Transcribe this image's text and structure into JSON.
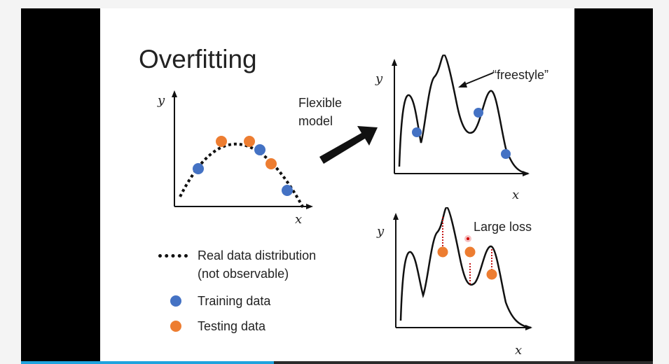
{
  "slide": {
    "title": "Overfitting",
    "flexible_model_line1": "Flexible",
    "flexible_model_line2": "model",
    "freestyle_label": "“freestyle”",
    "large_loss_label": "Large loss",
    "axis_y": "y",
    "axis_x": "x"
  },
  "legend": {
    "real_line1": "Real data distribution",
    "real_line2": "(not observable)",
    "training": "Training data",
    "testing": "Testing data"
  },
  "colors": {
    "training": "#4472c4",
    "testing": "#ed7d31",
    "loss_line": "#c00000",
    "progress": "#1fa3de"
  },
  "player": {
    "progress_fraction": 0.4
  }
}
